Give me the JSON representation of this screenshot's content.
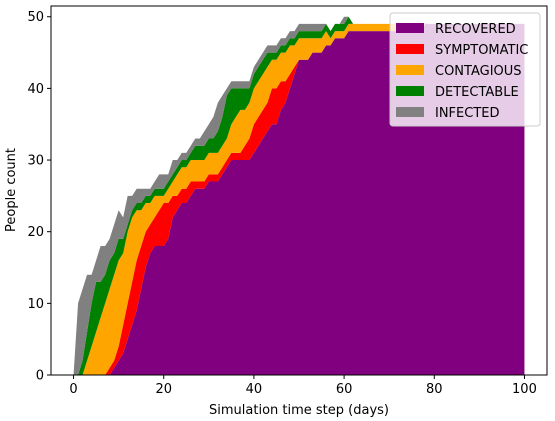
{
  "chart_data": {
    "type": "area",
    "stacked": true,
    "title": "",
    "xlabel": "Simulation time step (days)",
    "ylabel": "People count",
    "xlim": [
      -5,
      105
    ],
    "ylim": [
      0,
      51.5
    ],
    "xticks": [
      0,
      20,
      40,
      60,
      80,
      100
    ],
    "yticks": [
      0,
      10,
      20,
      30,
      40,
      50
    ],
    "grid": false,
    "legend_position": "top-right",
    "x": [
      0,
      1,
      2,
      3,
      4,
      5,
      6,
      7,
      8,
      9,
      10,
      11,
      12,
      13,
      14,
      15,
      16,
      17,
      18,
      19,
      20,
      21,
      22,
      23,
      24,
      25,
      26,
      27,
      28,
      29,
      30,
      31,
      32,
      33,
      34,
      35,
      36,
      37,
      38,
      39,
      40,
      41,
      42,
      43,
      44,
      45,
      46,
      47,
      48,
      49,
      50,
      51,
      52,
      53,
      54,
      55,
      56,
      57,
      58,
      59,
      60,
      61,
      62,
      63,
      64,
      65,
      66,
      67,
      68,
      69,
      70,
      71,
      72,
      73,
      74,
      75,
      76,
      77,
      78,
      79,
      80,
      81,
      82,
      83,
      84,
      85,
      86,
      87,
      88,
      89,
      90,
      91,
      92,
      93,
      94,
      95,
      96,
      97,
      98,
      99,
      100
    ],
    "series": [
      {
        "name": "RECOVERED",
        "color": "#800080",
        "values": [
          0,
          0,
          0,
          0,
          0,
          0,
          0,
          0,
          0,
          1,
          2,
          3,
          5,
          7,
          9,
          12,
          15,
          17,
          18,
          18,
          18,
          19,
          22,
          23,
          24,
          24,
          25,
          26,
          26,
          26,
          27,
          27,
          27,
          28,
          29,
          30,
          30,
          30,
          30,
          30,
          31,
          32,
          33,
          34,
          35,
          35,
          37,
          38,
          40,
          42,
          44,
          44,
          44,
          45,
          45,
          45,
          46,
          46,
          47,
          47,
          47,
          48,
          48,
          48,
          48,
          48,
          48,
          48,
          48,
          48,
          48,
          48,
          48,
          48,
          48,
          48,
          48,
          48,
          49,
          49,
          49,
          49,
          49,
          49,
          49,
          49,
          49,
          49,
          49,
          49,
          49,
          49,
          49,
          49,
          49,
          49,
          49,
          49,
          49,
          49,
          49
        ]
      },
      {
        "name": "SYMPTOMATIC",
        "color": "#ff0000",
        "values": [
          0,
          0,
          0,
          0,
          0,
          0,
          0,
          0,
          1,
          1,
          2,
          4,
          5,
          6,
          7,
          6,
          5,
          4,
          4,
          5,
          6,
          5,
          3,
          2,
          2,
          2,
          2,
          1,
          1,
          1,
          1,
          1,
          1,
          1,
          1,
          1,
          1,
          1,
          2,
          3,
          4,
          4,
          4,
          4,
          5,
          5,
          4,
          3,
          2,
          1,
          0,
          0,
          0,
          0,
          0,
          0,
          0,
          0,
          0,
          0,
          0,
          0,
          0,
          0,
          0,
          0,
          0,
          0,
          0,
          0,
          0,
          0,
          0,
          0,
          0,
          0,
          0,
          0,
          0,
          0,
          0,
          0,
          0,
          0,
          0,
          0,
          0,
          0,
          0,
          0,
          0,
          0,
          0,
          0,
          0,
          0,
          0,
          0,
          0,
          0,
          0
        ]
      },
      {
        "name": "CONTAGIOUS",
        "color": "#ffa500",
        "values": [
          0,
          0,
          0,
          2,
          4,
          6,
          8,
          10,
          11,
          12,
          12,
          10,
          10,
          9,
          7,
          5,
          4,
          3,
          3,
          2,
          1,
          2,
          2,
          3,
          3,
          3,
          3,
          3,
          3,
          3,
          3,
          3,
          3,
          3,
          3,
          4,
          5,
          6,
          5,
          5,
          5,
          5,
          5,
          5,
          4,
          4,
          4,
          4,
          4,
          3,
          3,
          3,
          3,
          2,
          2,
          2,
          2,
          1,
          1,
          1,
          1,
          1,
          1,
          1,
          1,
          1,
          1,
          1,
          1,
          1,
          1,
          1,
          1,
          1,
          1,
          1,
          1,
          1,
          0,
          0,
          0,
          0,
          0,
          0,
          0,
          0,
          0,
          0,
          0,
          0,
          0,
          0,
          0,
          0,
          0,
          0,
          0,
          0,
          0,
          0,
          0
        ]
      },
      {
        "name": "DETECTABLE",
        "color": "#008000",
        "values": [
          0,
          0,
          2,
          4,
          6,
          7,
          5,
          4,
          4,
          3,
          3,
          2,
          1,
          1,
          1,
          1,
          1,
          1,
          1,
          1,
          1,
          1,
          1,
          1,
          1,
          1,
          1,
          2,
          2,
          2,
          2,
          2,
          3,
          4,
          6,
          5,
          4,
          3,
          3,
          2,
          2,
          2,
          2,
          2,
          1,
          1,
          1,
          1,
          1,
          1,
          1,
          1,
          1,
          1,
          1,
          1,
          1,
          1,
          1,
          1,
          1,
          1,
          0,
          0,
          0,
          0,
          0,
          0,
          0,
          0,
          0,
          0,
          0,
          0,
          0,
          0,
          0,
          0,
          0,
          0,
          0,
          0,
          0,
          0,
          0,
          0,
          0,
          0,
          0,
          0,
          0,
          0,
          0,
          0,
          0,
          0,
          0,
          0,
          0,
          0,
          0
        ]
      },
      {
        "name": "INFECTED",
        "color": "#808080",
        "values": [
          0,
          10,
          10,
          8,
          4,
          3,
          5,
          4,
          3,
          4,
          4,
          3,
          4,
          2,
          2,
          2,
          1,
          1,
          1,
          2,
          2,
          1,
          2,
          1,
          1,
          1,
          1,
          1,
          1,
          2,
          2,
          3,
          4,
          3,
          1,
          1,
          1,
          1,
          1,
          1,
          1,
          1,
          1,
          1,
          1,
          1,
          1,
          1,
          1,
          1,
          1,
          1,
          1,
          1,
          1,
          1,
          0,
          0,
          0,
          0,
          1,
          0,
          0,
          0,
          0,
          0,
          0,
          0,
          0,
          0,
          0,
          0,
          0,
          0,
          0,
          0,
          0,
          0,
          0,
          0,
          0,
          0,
          0,
          0,
          0,
          0,
          0,
          0,
          0,
          0,
          0,
          0,
          0,
          0,
          0,
          0,
          0,
          0,
          0,
          0,
          0
        ]
      }
    ]
  }
}
